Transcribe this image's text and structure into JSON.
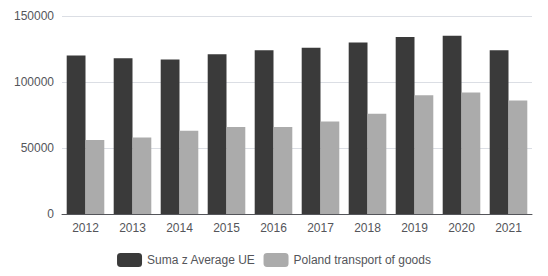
{
  "chart_data": {
    "type": "bar",
    "categories": [
      "2012",
      "2013",
      "2014",
      "2015",
      "2016",
      "2017",
      "2018",
      "2019",
      "2020",
      "2021"
    ],
    "series": [
      {
        "name": "Suma z Average UE",
        "color": "#3a3a3a",
        "values": [
          120000,
          118000,
          117000,
          121000,
          124000,
          126000,
          130000,
          134000,
          135000,
          124000
        ]
      },
      {
        "name": "Poland transport of goods",
        "color": "#ababab",
        "values": [
          56000,
          58000,
          63000,
          66000,
          66000,
          70000,
          76000,
          90000,
          92000,
          86000
        ]
      }
    ],
    "ylim": [
      0,
      150000
    ],
    "yticks": [
      0,
      50000,
      100000,
      150000
    ],
    "grid": true,
    "legend": "bottom"
  }
}
